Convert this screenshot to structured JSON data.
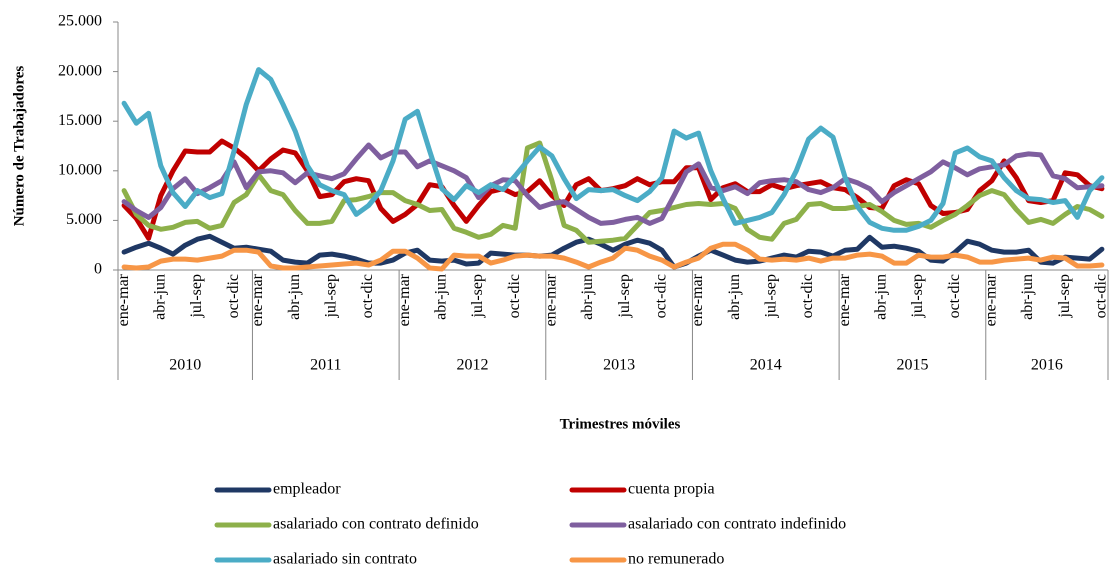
{
  "chart_data": {
    "type": "line",
    "y_label": "Número de Trabajadores",
    "x_label": "Trimestres móviles",
    "groups": [
      {
        "label": "2010",
        "categories": [
          "ene-mar",
          null,
          null,
          "abr-jun",
          null,
          null,
          "jul-sep",
          null,
          null,
          "oct-dic",
          null
        ]
      },
      {
        "label": "2011",
        "categories": [
          "ene-mar",
          null,
          null,
          "abr-jun",
          null,
          null,
          "jul-sep",
          null,
          null,
          "oct-dic",
          null,
          null
        ]
      },
      {
        "label": "2012",
        "categories": [
          "ene-mar",
          null,
          null,
          "abr-jun",
          null,
          null,
          "jul-sep",
          null,
          null,
          "oct-dic",
          null,
          null
        ]
      },
      {
        "label": "2013",
        "categories": [
          "ene-mar",
          null,
          null,
          "abr-jun",
          null,
          null,
          "jul-sep",
          null,
          null,
          "oct-dic",
          null,
          null
        ]
      },
      {
        "label": "2014",
        "categories": [
          "ene-mar",
          null,
          null,
          "abr-jun",
          null,
          null,
          "jul-sep",
          null,
          null,
          "oct-dic",
          null,
          null
        ]
      },
      {
        "label": "2015",
        "categories": [
          "ene-mar",
          null,
          null,
          "abr-jun",
          null,
          null,
          "jul-sep",
          null,
          null,
          "oct-dic",
          null,
          null
        ]
      },
      {
        "label": "2016",
        "categories": [
          "ene-mar",
          null,
          null,
          "abr-jun",
          null,
          null,
          "jul-sep",
          null,
          null,
          "oct-dic"
        ]
      }
    ],
    "ylim": [
      0,
      25000
    ],
    "yticks": [
      0,
      {
        "value": 5000,
        "label": "5.000"
      },
      {
        "value": 10000,
        "label": "10.000"
      },
      {
        "value": 15000,
        "label": "15.000"
      },
      {
        "value": 20000,
        "label": "20.000"
      },
      {
        "value": 25000,
        "label": "25.000"
      }
    ],
    "series": [
      {
        "name": "empleador",
        "color": "#1f3864",
        "values": [
          1800,
          2300,
          2700,
          2200,
          1600,
          2500,
          3100,
          3400,
          2800,
          2200,
          2300,
          2100,
          1900,
          1000,
          800,
          700,
          1500,
          1600,
          1400,
          1100,
          700,
          700,
          1000,
          1700,
          2000,
          1000,
          900,
          1000,
          600,
          700,
          1700,
          1600,
          1500,
          1500,
          1400,
          1500,
          2200,
          2800,
          3100,
          2600,
          2000,
          2600,
          3000,
          2700,
          2000,
          300,
          700,
          1400,
          2000,
          1500,
          1000,
          800,
          900,
          1200,
          1500,
          1300,
          1900,
          1800,
          1400,
          2000,
          2100,
          3300,
          2300,
          2400,
          2200,
          1900,
          1000,
          900,
          1800,
          2900,
          2600,
          2000,
          1800,
          1800,
          2000,
          800,
          700,
          1300,
          1200,
          1100,
          2100
        ]
      },
      {
        "name": "cuenta propia",
        "color": "#c00000",
        "values": [
          6500,
          5200,
          3200,
          7500,
          10000,
          12000,
          11900,
          11900,
          13000,
          12300,
          11300,
          10000,
          11200,
          12100,
          11800,
          10000,
          7400,
          7600,
          8900,
          9200,
          9000,
          6200,
          4900,
          5600,
          6600,
          8600,
          8400,
          6500,
          4900,
          6500,
          7900,
          8200,
          7600,
          7900,
          9000,
          7500,
          6500,
          8600,
          9200,
          8000,
          8200,
          8500,
          9200,
          8600,
          8900,
          8900,
          10300,
          10300,
          7100,
          8300,
          8700,
          7900,
          7900,
          8600,
          8200,
          8500,
          8700,
          8900,
          8300,
          8100,
          7300,
          6300,
          6200,
          8500,
          9100,
          8700,
          6500,
          5700,
          5800,
          6100,
          8000,
          9000,
          11000,
          9300,
          7000,
          6800,
          7000,
          9800,
          9600,
          8500,
          8200
        ]
      },
      {
        "name": "asalariado con contrato definido",
        "color": "#8db04a",
        "values": [
          8000,
          5600,
          4500,
          4100,
          4300,
          4800,
          4900,
          4200,
          4500,
          6800,
          7600,
          9600,
          8000,
          7600,
          6000,
          4700,
          4700,
          4900,
          7000,
          7100,
          7400,
          7800,
          7800,
          7000,
          6600,
          6000,
          6100,
          4200,
          3800,
          3300,
          3600,
          4500,
          4200,
          12300,
          12800,
          9000,
          4500,
          4000,
          2800,
          2900,
          3000,
          3200,
          4500,
          5800,
          6000,
          6300,
          6600,
          6700,
          6600,
          6700,
          6200,
          4100,
          3300,
          3100,
          4700,
          5100,
          6600,
          6700,
          6200,
          6200,
          6400,
          6600,
          5900,
          5000,
          4600,
          4700,
          4300,
          5000,
          5600,
          6500,
          7500,
          8000,
          7600,
          6100,
          4800,
          5100,
          4700,
          5600,
          6400,
          6100,
          5400
        ]
      },
      {
        "name": "asalariado con contrato indefinido",
        "color": "#7f5f9f",
        "values": [
          6900,
          6000,
          5300,
          6300,
          8200,
          9200,
          7700,
          8300,
          9000,
          10900,
          8300,
          9900,
          10000,
          9800,
          8800,
          9800,
          9500,
          9200,
          9700,
          11200,
          12600,
          11300,
          11900,
          11900,
          10400,
          11000,
          10500,
          10000,
          9300,
          7300,
          8500,
          9100,
          9000,
          7500,
          6300,
          6700,
          6900,
          6100,
          5300,
          4700,
          4800,
          5100,
          5300,
          4700,
          5200,
          7500,
          9900,
          10700,
          8300,
          8000,
          8400,
          7700,
          8800,
          9000,
          9100,
          8900,
          8100,
          7800,
          8300,
          9200,
          8800,
          8200,
          6900,
          7800,
          8500,
          9200,
          9900,
          10900,
          10300,
          9600,
          10200,
          10400,
          10600,
          11500,
          11700,
          11600,
          9500,
          9200,
          8300,
          8400,
          8500
        ]
      },
      {
        "name": "asalariado sin contrato",
        "color": "#4bacc6",
        "values": [
          16800,
          14800,
          15800,
          10500,
          7800,
          6400,
          8000,
          7300,
          7700,
          12000,
          16700,
          20200,
          19200,
          16700,
          14000,
          10500,
          8600,
          8000,
          7600,
          5600,
          6500,
          8000,
          11000,
          15200,
          16000,
          12000,
          8200,
          7100,
          8500,
          7800,
          8600,
          8100,
          9500,
          11000,
          12400,
          11500,
          9200,
          7200,
          8100,
          8000,
          8100,
          7500,
          7000,
          7900,
          9300,
          14000,
          13300,
          13800,
          10000,
          7200,
          4700,
          5000,
          5300,
          5800,
          7600,
          10000,
          13200,
          14300,
          13400,
          9300,
          6400,
          4800,
          4200,
          4000,
          4000,
          4400,
          5000,
          6700,
          11800,
          12300,
          11400,
          11000,
          9300,
          8000,
          7200,
          7100,
          6800,
          7000,
          5300,
          8000,
          9300
        ]
      },
      {
        "name": "no remunerado",
        "color": "#f79646",
        "values": [
          300,
          200,
          300,
          900,
          1100,
          1100,
          1000,
          1200,
          1400,
          2000,
          2000,
          1800,
          400,
          200,
          200,
          300,
          400,
          500,
          600,
          700,
          500,
          1000,
          1900,
          1900,
          1200,
          200,
          100,
          1500,
          1400,
          1400,
          700,
          1000,
          1400,
          1500,
          1400,
          1400,
          1200,
          800,
          300,
          800,
          1200,
          2200,
          2000,
          1400,
          1000,
          300,
          800,
          1200,
          2200,
          2600,
          2600,
          2000,
          1100,
          1000,
          1100,
          1000,
          1200,
          900,
          1200,
          1200,
          1500,
          1600,
          1400,
          700,
          700,
          1500,
          1300,
          1300,
          1500,
          1300,
          800,
          800,
          1000,
          1100,
          1200,
          1000,
          1300,
          1200,
          400,
          400,
          500
        ]
      }
    ]
  }
}
